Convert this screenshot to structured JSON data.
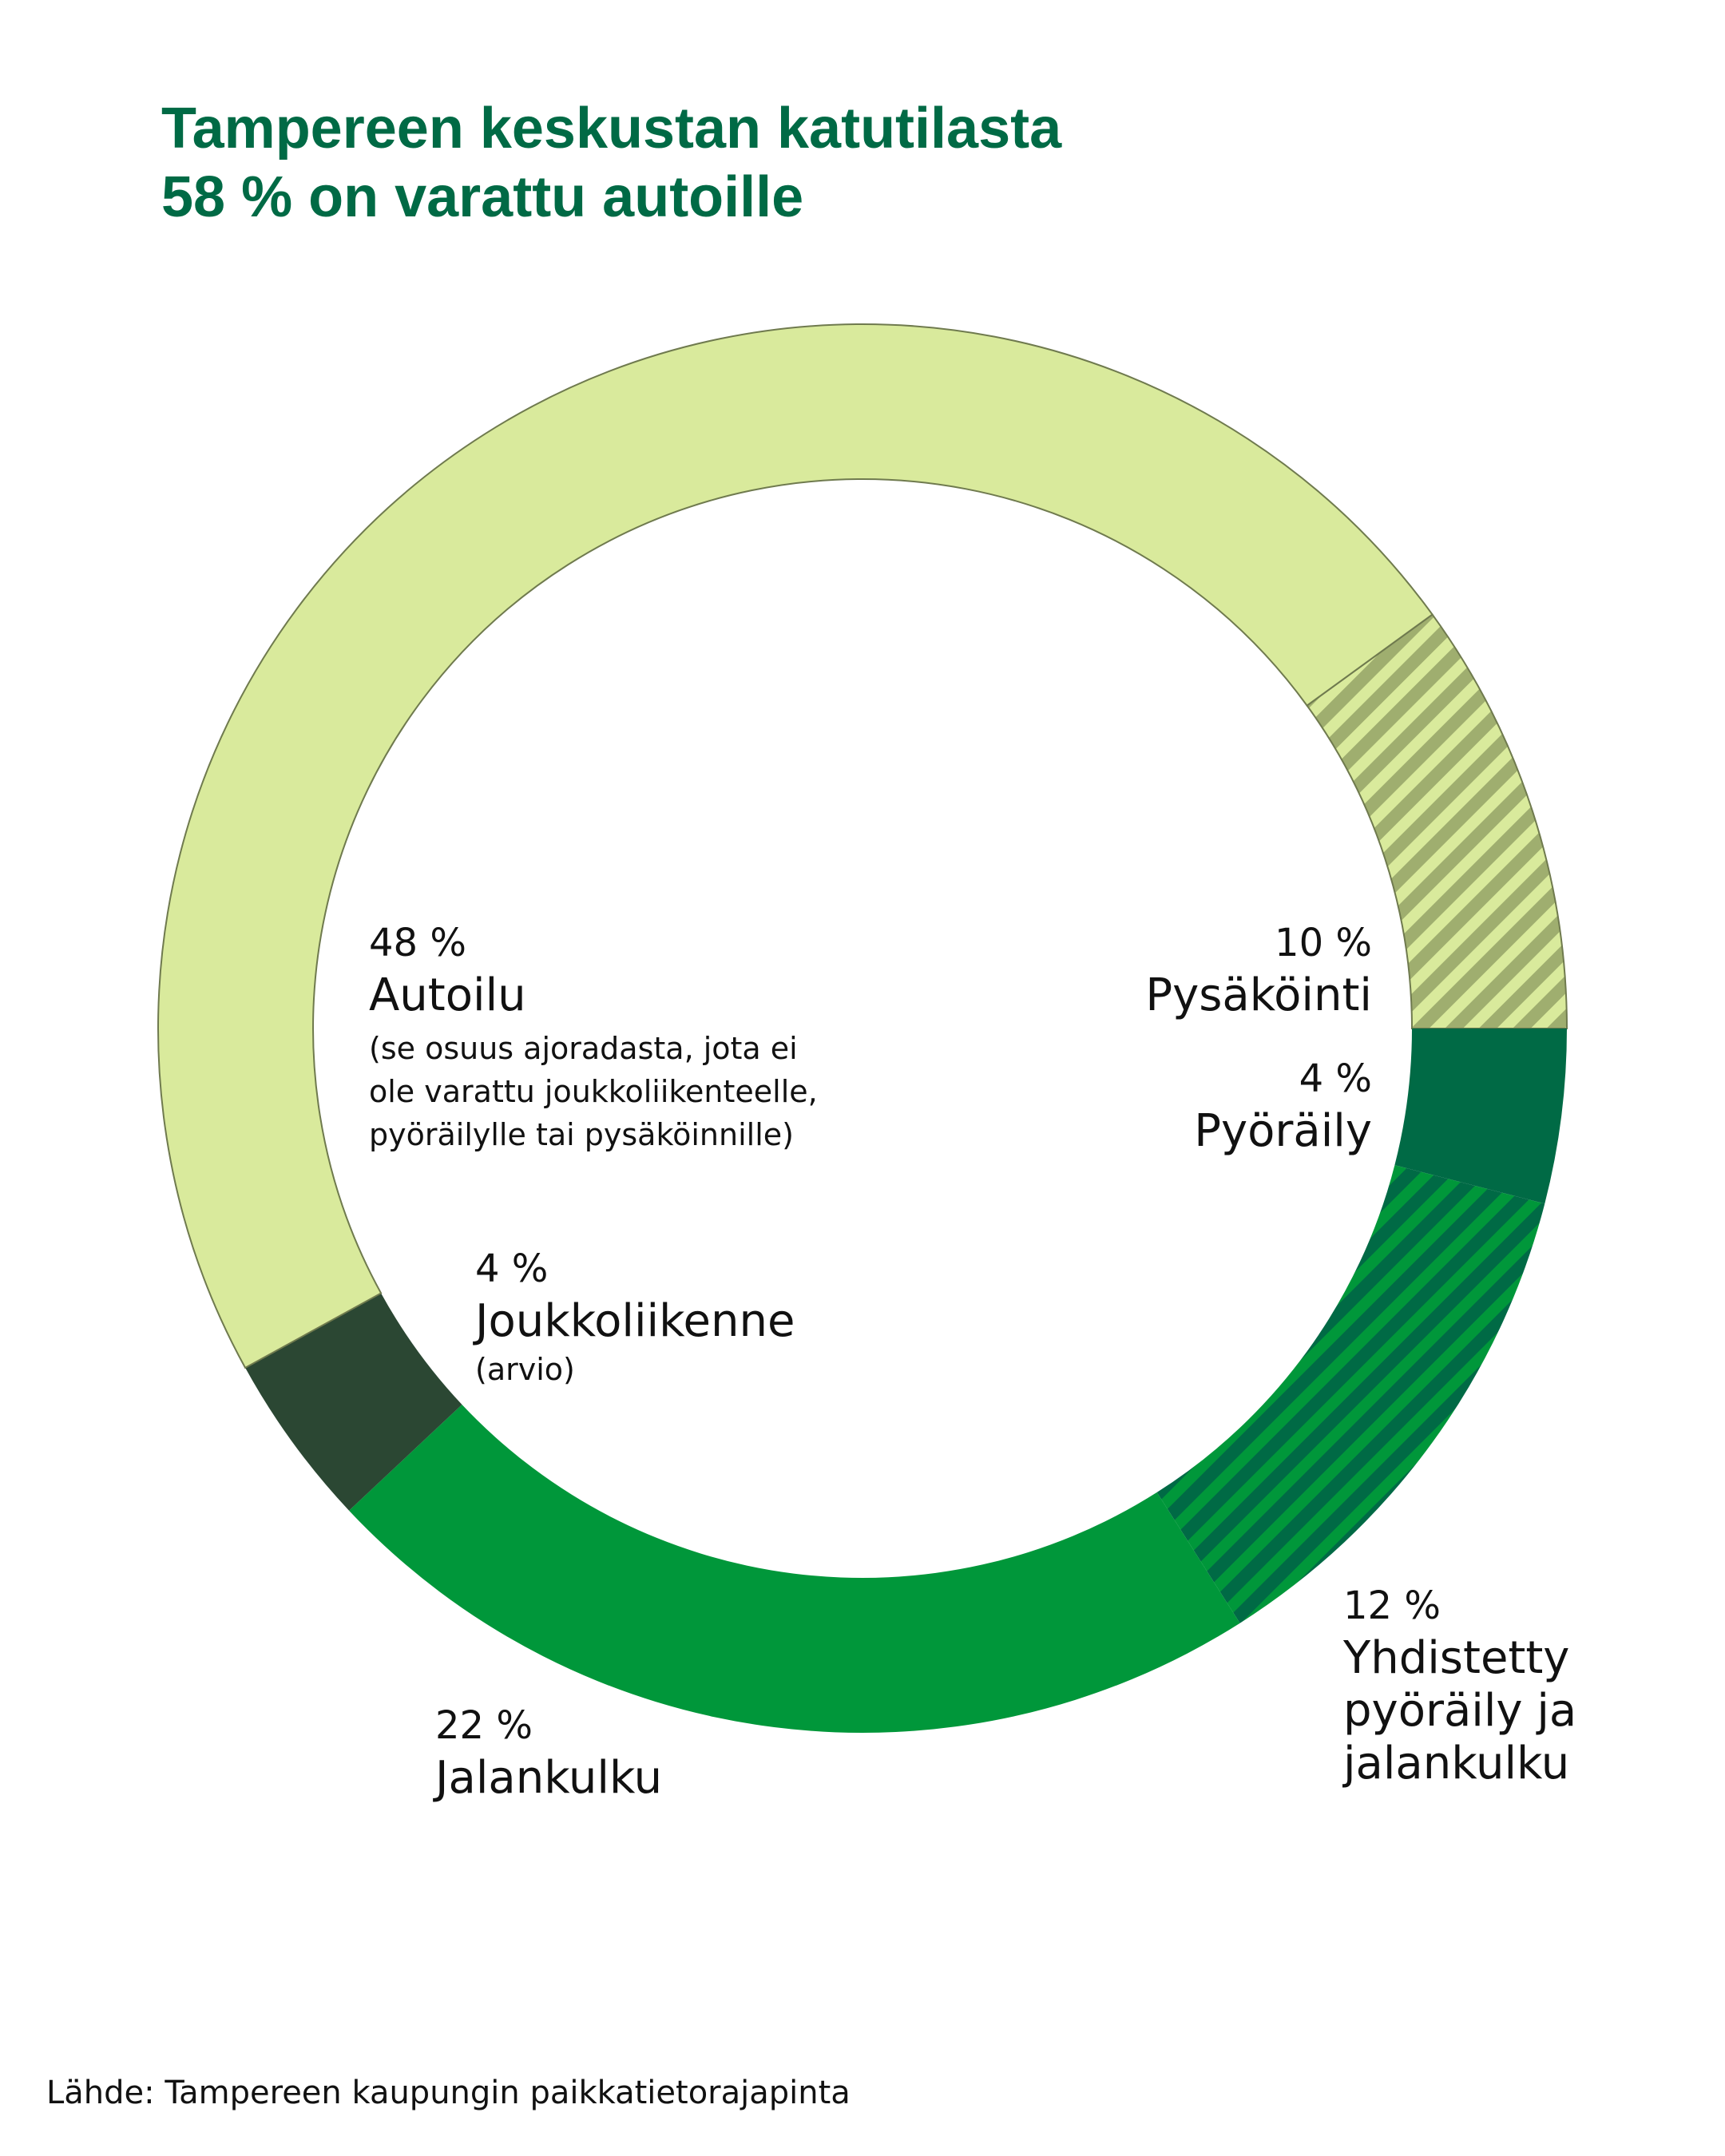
{
  "title": {
    "line1": "Tampereen keskustan katutilasta",
    "line2": "58 % on varattu autoille"
  },
  "source": "Lähde: Tampereen kaupungin paikkatietorajapinta",
  "colors": {
    "autoilu": "#d9ea9c",
    "pysakointi_stripe": "#9fae6f",
    "pyoraily": "#006a45",
    "yhdistetty_stripe": "#00773c",
    "jalankulku": "#00973a",
    "joukkoliikenne": "#2b4733",
    "title": "#006a45"
  },
  "chart_data": {
    "type": "pie",
    "title": "Tampereen keskustan katutilasta 58 % on varattu autoille",
    "slices": [
      {
        "key": "pysakointi",
        "pct_label": "10 %",
        "name": "Pysäköinti",
        "note": "",
        "value": 10,
        "pattern": "stripes"
      },
      {
        "key": "pyoraily",
        "pct_label": "4 %",
        "name": "Pyöräily",
        "note": "",
        "value": 4,
        "pattern": "solid"
      },
      {
        "key": "yhdistetty",
        "pct_label": "12 %",
        "name": "Yhdistetty pyöräily ja jalankulku",
        "name_lines": [
          "Yhdistetty",
          "pyöräily ja",
          "jalankulku"
        ],
        "note": "",
        "value": 12,
        "pattern": "stripes"
      },
      {
        "key": "jalankulku",
        "pct_label": "22 %",
        "name": "Jalankulku",
        "note": "",
        "value": 22,
        "pattern": "solid"
      },
      {
        "key": "joukkoliikenne",
        "pct_label": "4 %",
        "name": "Joukkoliikenne",
        "note": "(arvio)",
        "value": 4,
        "pattern": "solid"
      },
      {
        "key": "autoilu",
        "pct_label": "48 %",
        "name": "Autoilu",
        "note": "(se osuus ajoradasta, jota ei ole varattu joukkoliikenteelle, pyöräilylle tai pysäköinnille)",
        "note_lines": [
          "(se osuus ajoradasta, jota ei",
          "ole varattu joukkoliikenteelle,",
          "pyöräilylle tai pysäköinnille)"
        ],
        "value": 48,
        "pattern": "solid"
      }
    ]
  }
}
